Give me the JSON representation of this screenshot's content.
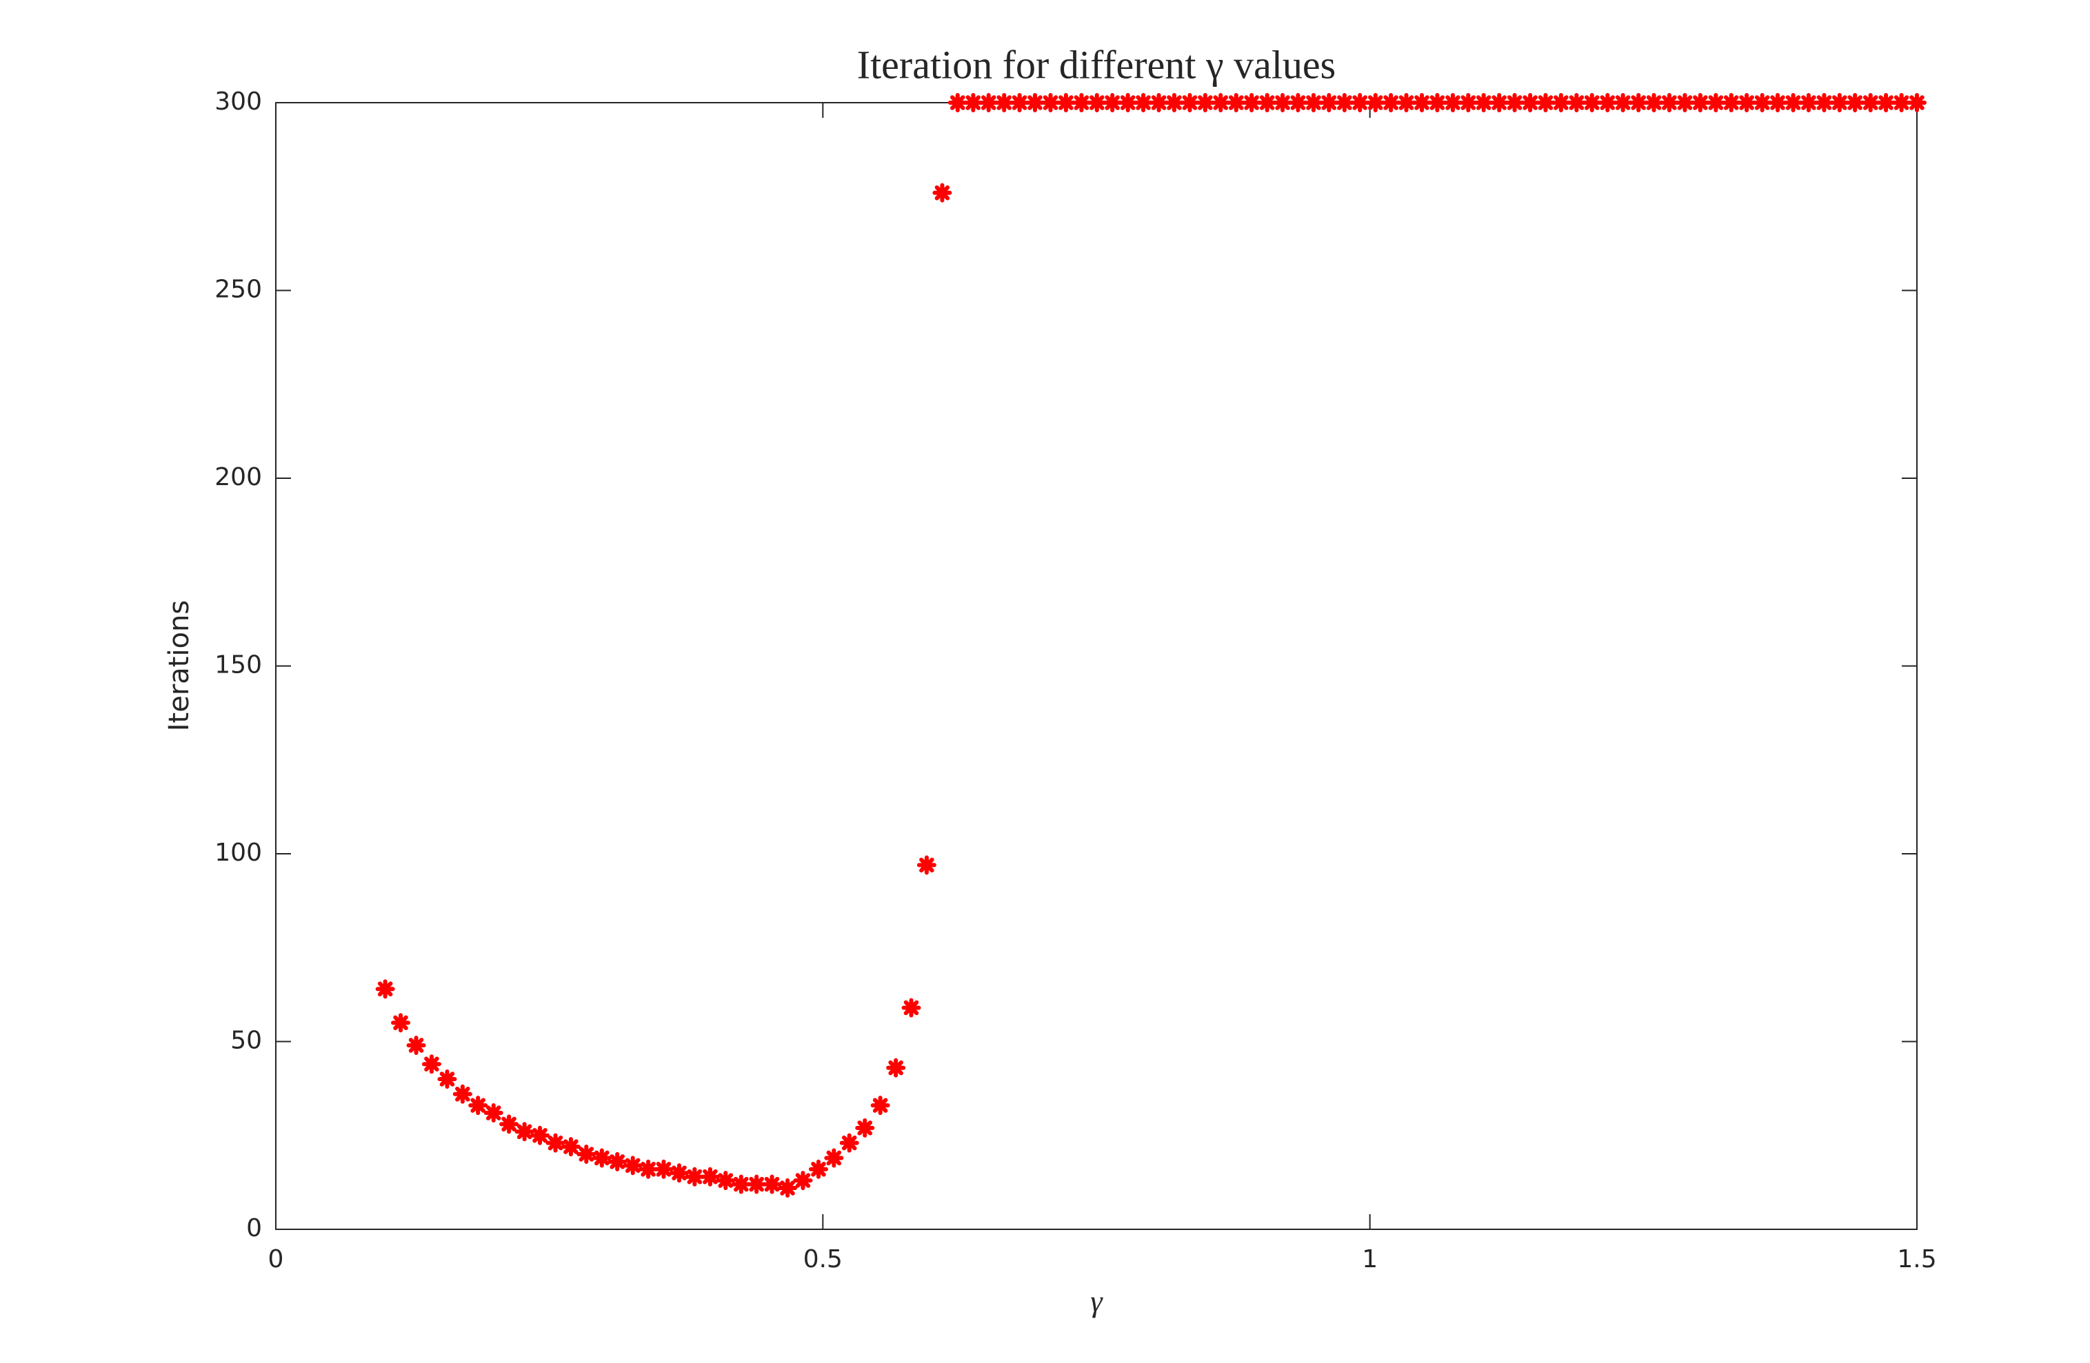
{
  "chart_data": {
    "type": "scatter",
    "title": "Iteration for different γ values",
    "x_label": "γ",
    "y_label": "Iterations",
    "color": "#ff0000",
    "marker": "asterisk",
    "x": [
      0.1,
      0.1141,
      0.1283,
      0.1424,
      0.1566,
      0.1707,
      0.1848,
      0.199,
      0.2131,
      0.2273,
      0.2414,
      0.2556,
      0.2697,
      0.2838,
      0.298,
      0.3121,
      0.3263,
      0.3404,
      0.3545,
      0.3687,
      0.3828,
      0.397,
      0.4111,
      0.4253,
      0.4394,
      0.4535,
      0.4677,
      0.4818,
      0.496,
      0.5101,
      0.5242,
      0.5384,
      0.5525,
      0.5667,
      0.5808,
      0.5949,
      0.6091,
      0.6232,
      0.6374,
      0.6515,
      0.6657,
      0.6798,
      0.6939,
      0.7081,
      0.7222,
      0.7364,
      0.7505,
      0.7646,
      0.7788,
      0.7929,
      0.8071,
      0.8212,
      0.8354,
      0.8495,
      0.8636,
      0.8778,
      0.8919,
      0.9061,
      0.9202,
      0.9343,
      0.9485,
      0.9626,
      0.9768,
      0.9909,
      1.0051,
      1.0192,
      1.0333,
      1.0475,
      1.0616,
      1.0758,
      1.0899,
      1.104,
      1.1182,
      1.1323,
      1.1465,
      1.1606,
      1.1747,
      1.1889,
      1.203,
      1.2172,
      1.2313,
      1.2455,
      1.2596,
      1.2737,
      1.2879,
      1.302,
      1.3162,
      1.3303,
      1.3444,
      1.3586,
      1.3727,
      1.3869,
      1.401,
      1.4152,
      1.4293,
      1.4434,
      1.4576,
      1.4717,
      1.4859,
      1.5
    ],
    "values": [
      64,
      55,
      49,
      44,
      40,
      36,
      33,
      31,
      28,
      26,
      25,
      23,
      22,
      20,
      19,
      18,
      17,
      16,
      16,
      15,
      14,
      14,
      13,
      12,
      12,
      12,
      11,
      13,
      16,
      19,
      23,
      27,
      33,
      43,
      59,
      97,
      276,
      300,
      300,
      300,
      300,
      300,
      300,
      300,
      300,
      300,
      300,
      300,
      300,
      300,
      300,
      300,
      300,
      300,
      300,
      300,
      300,
      300,
      300,
      300,
      300,
      300,
      300,
      300,
      300,
      300,
      300,
      300,
      300,
      300,
      300,
      300,
      300,
      300,
      300,
      300,
      300,
      300,
      300,
      300,
      300,
      300,
      300,
      300,
      300,
      300,
      300,
      300,
      300,
      300,
      300,
      300,
      300,
      300,
      300,
      300,
      300,
      300,
      300,
      300
    ],
    "xlim": [
      0,
      1.5
    ],
    "xticks": [
      0,
      0.5,
      1,
      1.5
    ],
    "ylim": [
      0,
      300
    ],
    "yticks": [
      0,
      50,
      100,
      150,
      200,
      250,
      300
    ],
    "grid": false
  }
}
